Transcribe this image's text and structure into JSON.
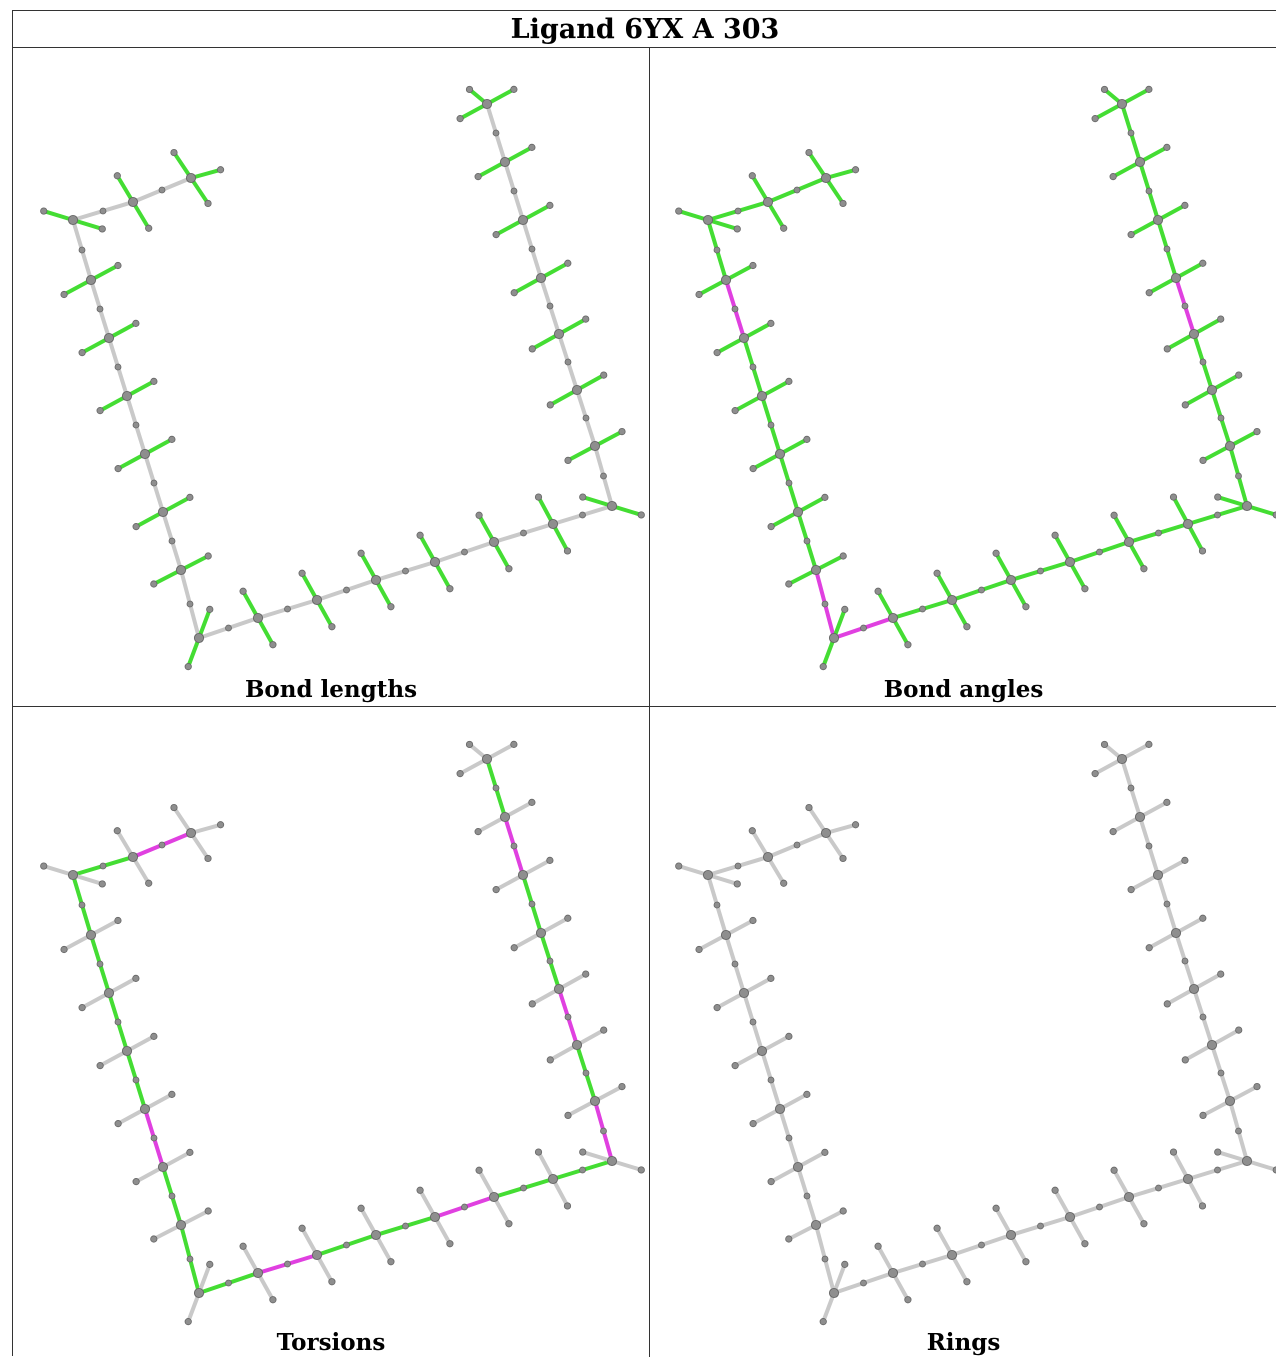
{
  "title": "Ligand 6YX A 303",
  "colors": {
    "bond_default": "#c9c9c9",
    "bond_ok": "#44dd33",
    "bond_outlier": "#e040e0",
    "atom_fill": "#8e8e8e",
    "atom_stroke": "#666666"
  },
  "panels": [
    {
      "caption": "Bond lengths",
      "mode": "lengths"
    },
    {
      "caption": "Bond angles",
      "mode": "angles"
    },
    {
      "caption": "Torsions",
      "mode": "torsions"
    },
    {
      "caption": "Rings",
      "mode": "rings"
    }
  ]
}
